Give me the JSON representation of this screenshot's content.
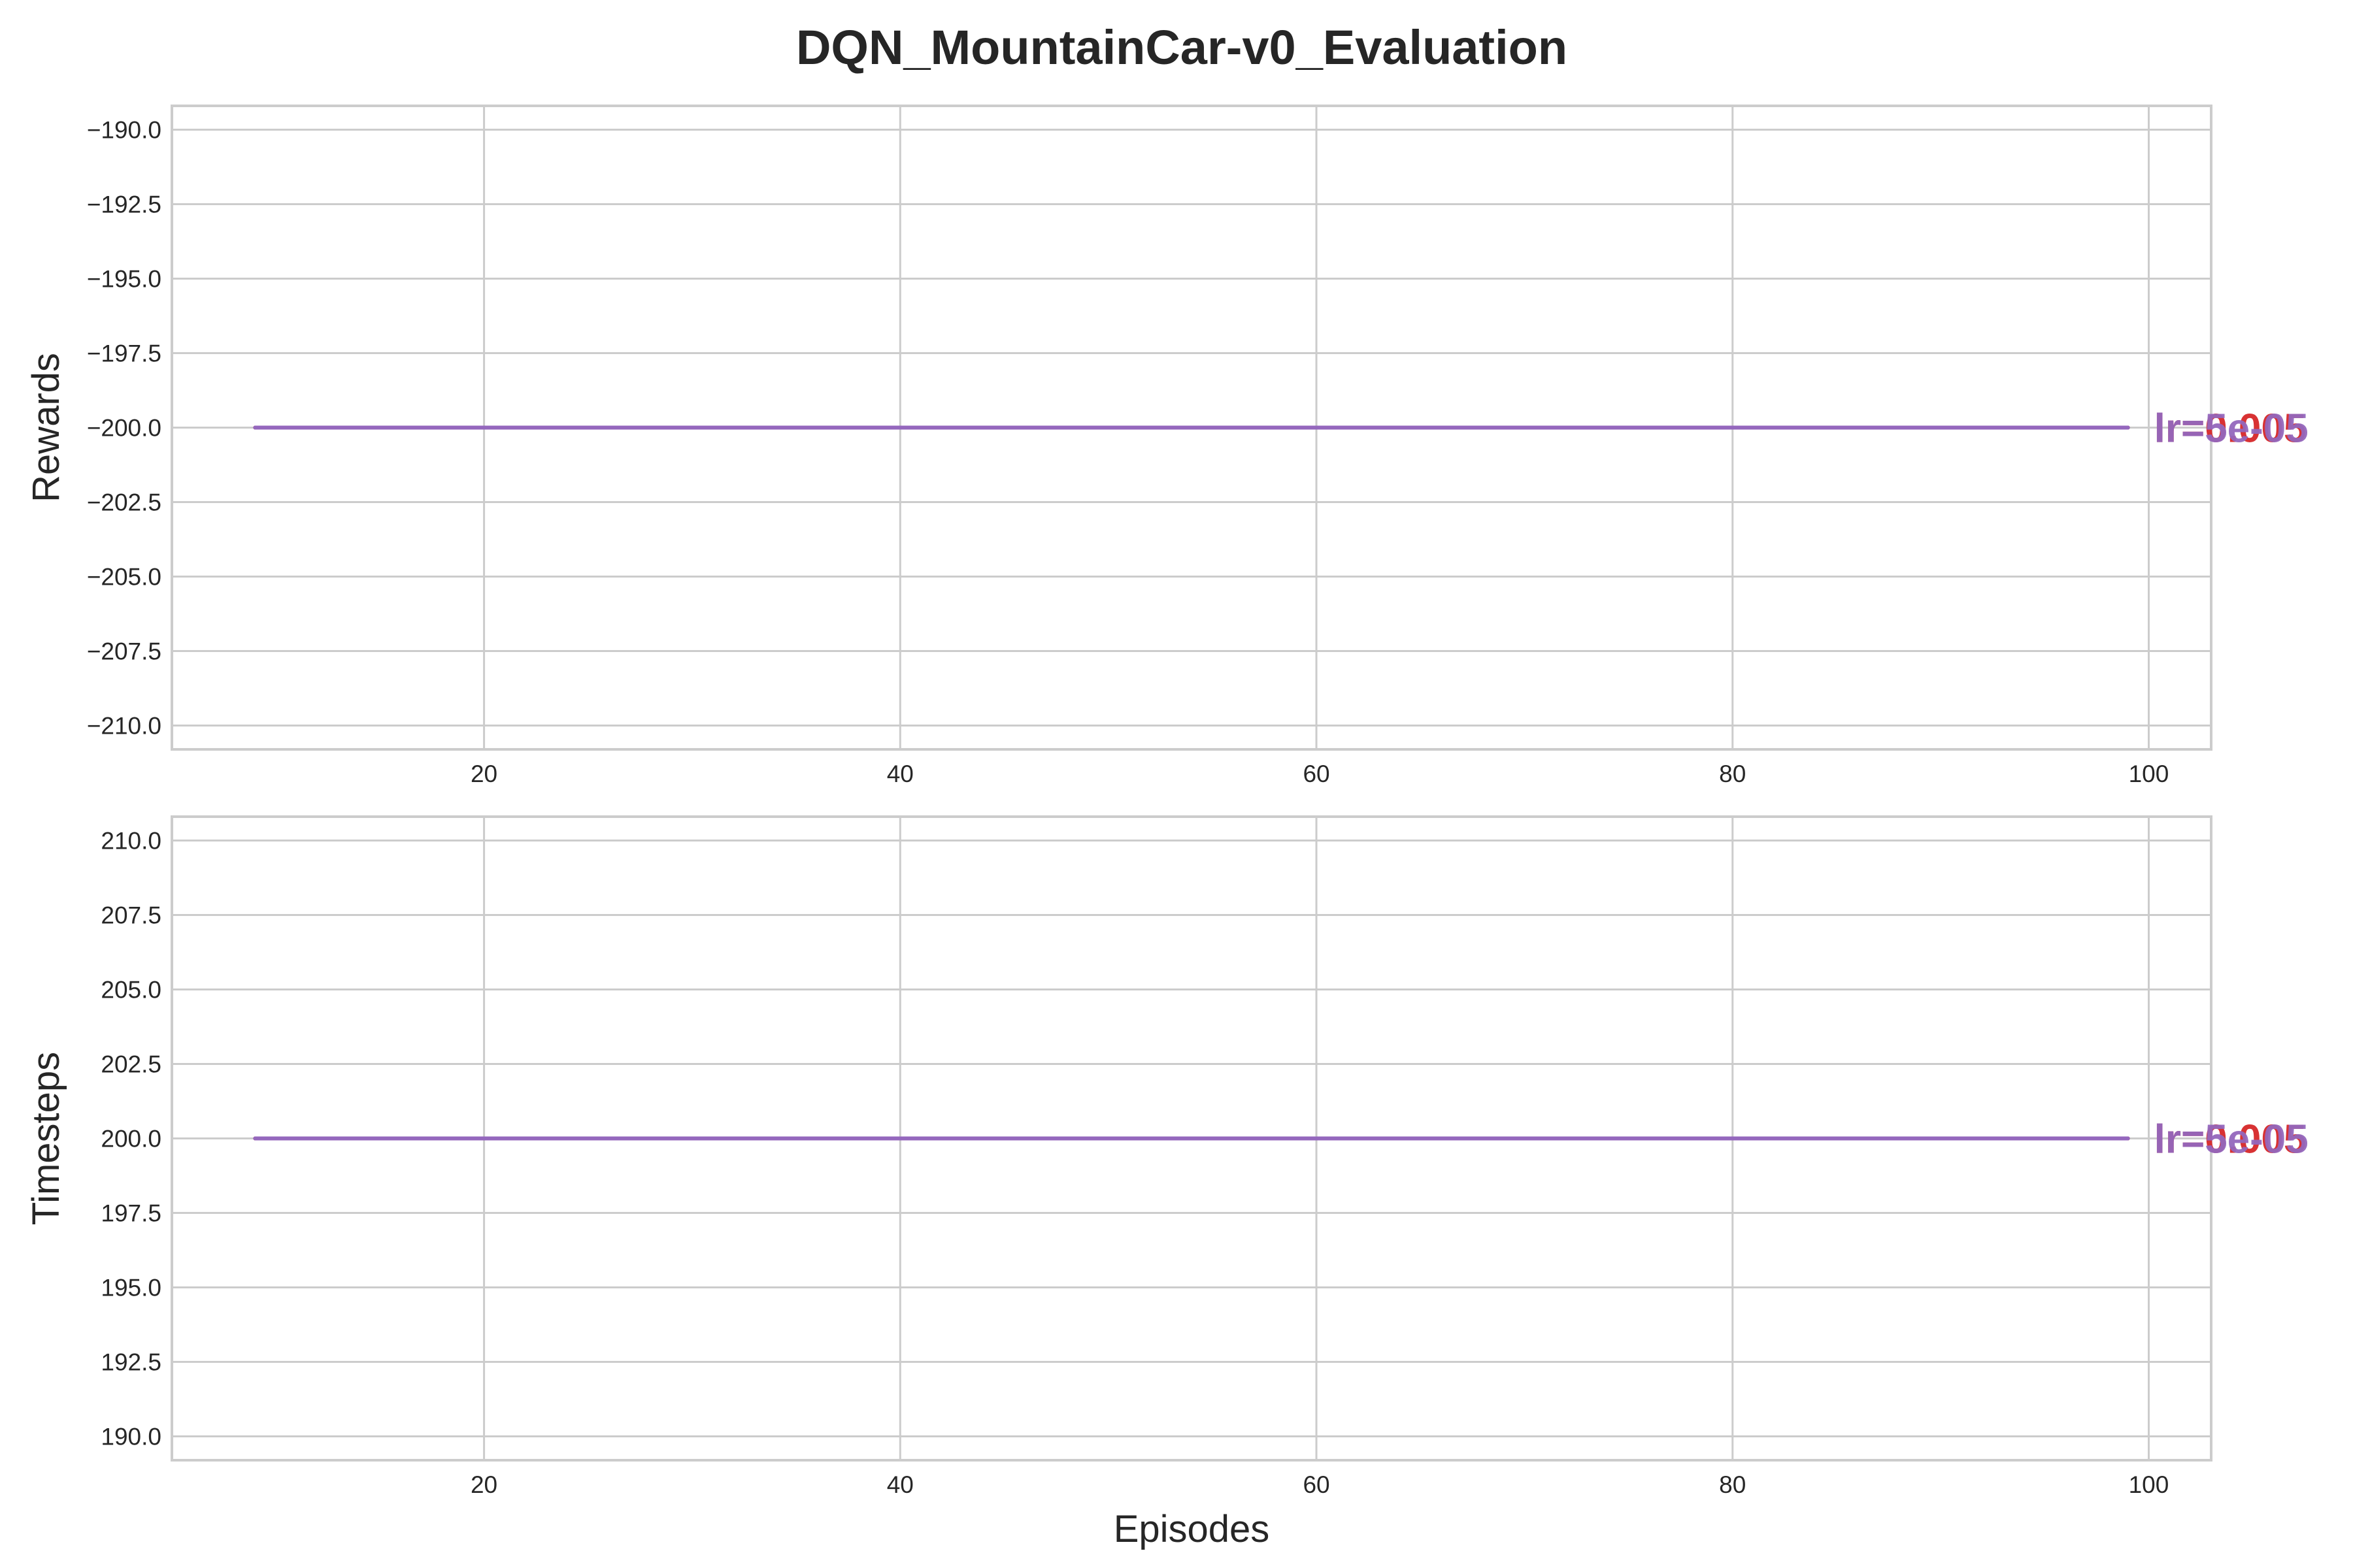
{
  "title": "DQN_MountainCar-v0_Evaluation",
  "colors": {
    "text": "#262626",
    "grid": "#cccccc",
    "frame": "#cccccc"
  },
  "chart_data": [
    {
      "type": "line",
      "ylabel": "Rewards",
      "xlabel": "",
      "grid": true,
      "xlim": [
        5,
        103
      ],
      "ylim": [
        -210.8,
        -189.2
      ],
      "xticks": [
        20,
        40,
        60,
        80,
        100
      ],
      "xtick_labels": [
        "20",
        "40",
        "60",
        "80",
        "100"
      ],
      "yticks": [
        -190,
        -192.5,
        -195,
        -197.5,
        -200,
        -202.5,
        -205,
        -207.5,
        -210
      ],
      "ytick_labels": [
        "−190.0",
        "−192.5",
        "−195.0",
        "−197.5",
        "−200.0",
        "−202.5",
        "−205.0",
        "−207.5",
        "−210.0"
      ],
      "series": [
        {
          "name": "lr=0.005",
          "color": "#d62728",
          "x": [
            9,
            99
          ],
          "y": [
            -200,
            -200
          ]
        },
        {
          "name": "lr=5e-05",
          "color": "#9467bd",
          "x": [
            9,
            99
          ],
          "y": [
            -200,
            -200
          ]
        }
      ]
    },
    {
      "type": "line",
      "ylabel": "Timesteps",
      "xlabel": "Episodes",
      "grid": true,
      "xlim": [
        5,
        103
      ],
      "ylim": [
        189.2,
        210.8
      ],
      "xticks": [
        20,
        40,
        60,
        80,
        100
      ],
      "xtick_labels": [
        "20",
        "40",
        "60",
        "80",
        "100"
      ],
      "yticks": [
        190,
        192.5,
        195,
        197.5,
        200,
        202.5,
        205,
        207.5,
        210
      ],
      "ytick_labels": [
        "190.0",
        "192.5",
        "195.0",
        "197.5",
        "200.0",
        "202.5",
        "205.0",
        "207.5",
        "210.0"
      ],
      "series": [
        {
          "name": "lr=0.005",
          "color": "#d62728",
          "x": [
            9,
            99
          ],
          "y": [
            200,
            200
          ]
        },
        {
          "name": "lr=5e-05",
          "color": "#9467bd",
          "x": [
            9,
            99
          ],
          "y": [
            200,
            200
          ]
        }
      ]
    }
  ]
}
